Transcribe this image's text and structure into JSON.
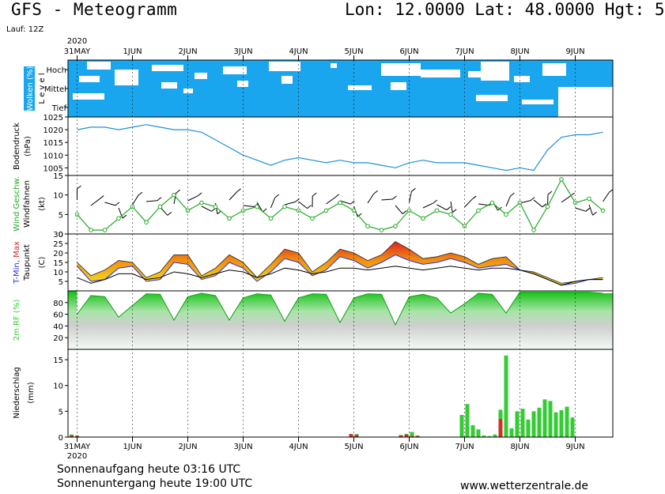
{
  "header": {
    "title": "GFS - Meteogramm",
    "coords": "Lon: 12.0000 Lat: 48.0000 Hgt: 5",
    "run": "Lauf: 12Z"
  },
  "footer": {
    "sunrise": "Sonnenaufgang heute 03:16 UTC",
    "sunset": "Sonnenuntergang heute 19:00 UTC",
    "site": "www.wetterzentrale.de"
  },
  "colors": {
    "cloud": "#1aa6ee",
    "pressure": "#1e90d6",
    "wind_speed": "#22aa22",
    "tmin": "#2233dd",
    "tmax": "#dd2222",
    "dew": "#000000",
    "rh": "#33cc33",
    "rain": "#33cc33",
    "snow": "#cc3322"
  },
  "time_axis": {
    "year": "2020",
    "day_labels": [
      "31MAY",
      "1JUN",
      "2JUN",
      "3JUN",
      "4JUN",
      "5JUN",
      "6JUN",
      "7JUN",
      "8JUN",
      "9JUN"
    ]
  },
  "chart_data": [
    {
      "type": "heatmap",
      "ylabel": "Wolken (%)",
      "level_axis": "L e v e l",
      "rows": [
        "Hoch",
        "Mittel",
        "Tief"
      ]
    },
    {
      "type": "line",
      "ylabel": "Bodendruck (hPa)",
      "ylim": [
        1002,
        1025
      ],
      "yticks": [
        1005,
        1010,
        1015,
        1020,
        1025
      ],
      "x_days": [
        0,
        0.25,
        0.5,
        0.75,
        1,
        1.25,
        1.5,
        1.75,
        2,
        2.25,
        2.5,
        2.75,
        3,
        3.25,
        3.5,
        3.75,
        4,
        4.25,
        4.5,
        4.75,
        5,
        5.25,
        5.5,
        5.75,
        6,
        6.25,
        6.5,
        6.75,
        7,
        7.25,
        7.5,
        7.75,
        8,
        8.25,
        8.5,
        8.75,
        9,
        9.25,
        9.5
      ],
      "values": [
        1020,
        1021,
        1021,
        1020,
        1021,
        1022,
        1021,
        1020,
        1020,
        1019,
        1016,
        1013,
        1010,
        1008,
        1006,
        1008,
        1009,
        1008,
        1007,
        1008,
        1007,
        1007,
        1006,
        1005,
        1007,
        1008,
        1007,
        1007,
        1007,
        1006,
        1005,
        1004,
        1005,
        1004,
        1012,
        1017,
        1018,
        1018,
        1019
      ]
    },
    {
      "type": "line",
      "ylabel": "Wind Geschw.",
      "ylabel2": "Windfahnen",
      "unit": "(kt)",
      "ylim": [
        0,
        15
      ],
      "yticks": [
        0,
        5,
        10,
        15
      ],
      "x_days": [
        0,
        0.25,
        0.5,
        0.75,
        1,
        1.25,
        1.5,
        1.75,
        2,
        2.25,
        2.5,
        2.75,
        3,
        3.25,
        3.5,
        3.75,
        4,
        4.25,
        4.5,
        4.75,
        5,
        5.25,
        5.5,
        5.75,
        6,
        6.25,
        6.5,
        6.75,
        7,
        7.25,
        7.5,
        7.75,
        8,
        8.25,
        8.5,
        8.75,
        9,
        9.25,
        9.5
      ],
      "values": [
        5,
        1,
        1,
        4,
        7,
        3,
        7,
        10,
        6,
        8,
        7,
        4,
        6,
        7,
        4,
        7,
        6,
        4,
        6,
        8,
        6,
        2,
        1,
        2,
        6,
        4,
        6,
        5,
        2,
        6,
        8,
        5,
        8,
        1,
        7,
        14,
        8,
        9,
        6
      ]
    },
    {
      "type": "area",
      "ylabel": "T-Min, Max",
      "ylabel2": "Taupunkt",
      "unit": "(C)",
      "ylim": [
        0,
        30
      ],
      "yticks": [
        5,
        10,
        15,
        20,
        25,
        30
      ],
      "x_days": [
        0,
        0.25,
        0.5,
        0.75,
        1,
        1.25,
        1.5,
        1.75,
        2,
        2.25,
        2.5,
        2.75,
        3,
        3.25,
        3.5,
        3.75,
        4,
        4.25,
        4.5,
        4.75,
        5,
        5.25,
        5.5,
        5.75,
        6,
        6.25,
        6.5,
        6.75,
        7,
        7.25,
        7.5,
        7.75,
        8,
        8.25,
        8.5,
        8.75,
        9,
        9.25,
        9.5
      ],
      "tmax": [
        15,
        8,
        11,
        16,
        15,
        7,
        10,
        19,
        19,
        8,
        12,
        19,
        15,
        7,
        14,
        22,
        20,
        10,
        15,
        22,
        20,
        16,
        19,
        26,
        22,
        17,
        18,
        20,
        18,
        14,
        17,
        18,
        11,
        10,
        7,
        4,
        5,
        6,
        7
      ],
      "tmin": [
        13,
        5,
        6,
        12,
        13,
        5,
        6,
        15,
        14,
        6,
        8,
        15,
        12,
        5,
        10,
        17,
        15,
        8,
        11,
        18,
        16,
        12,
        15,
        19,
        16,
        14,
        15,
        17,
        15,
        12,
        13,
        14,
        11,
        9,
        6,
        3,
        4,
        6,
        6
      ],
      "dew": [
        7,
        4,
        6,
        9,
        9,
        6,
        7,
        10,
        9,
        7,
        9,
        11,
        10,
        7,
        9,
        12,
        11,
        9,
        10,
        12,
        12,
        11,
        12,
        13,
        12,
        11,
        12,
        13,
        12,
        11,
        12,
        12,
        11,
        9,
        6,
        3,
        5,
        6,
        6
      ]
    },
    {
      "type": "area",
      "ylabel": "2m RF (%)",
      "ylim": [
        0,
        100
      ],
      "yticks": [
        20,
        40,
        60,
        80
      ],
      "x_days": [
        0,
        0.25,
        0.5,
        0.75,
        1,
        1.25,
        1.5,
        1.75,
        2,
        2.25,
        2.5,
        2.75,
        3,
        3.25,
        3.5,
        3.75,
        4,
        4.25,
        4.5,
        4.75,
        5,
        5.25,
        5.5,
        5.75,
        6,
        6.25,
        6.5,
        6.75,
        7,
        7.25,
        7.5,
        7.75,
        8,
        8.25,
        8.5,
        8.75,
        9,
        9.25,
        9.5
      ],
      "values": [
        60,
        92,
        90,
        55,
        75,
        95,
        94,
        50,
        90,
        96,
        92,
        50,
        88,
        95,
        93,
        48,
        88,
        95,
        94,
        46,
        88,
        95,
        94,
        42,
        90,
        94,
        88,
        62,
        78,
        96,
        94,
        62,
        98,
        98,
        98,
        98,
        98,
        98,
        96
      ]
    },
    {
      "type": "bar",
      "ylabel": "Niederschlag",
      "unit": "(mm)",
      "ylim": [
        0,
        17
      ],
      "yticks": [
        0,
        5,
        10,
        15
      ],
      "x_days": [
        -0.1,
        0.0,
        4.95,
        5.05,
        5.85,
        5.95,
        6.05,
        6.15,
        6.95,
        7.05,
        7.15,
        7.25,
        7.35,
        7.45,
        7.55,
        7.65,
        7.75,
        7.85,
        7.95,
        8.05,
        8.15,
        8.25,
        8.35,
        8.45,
        8.55,
        8.65,
        8.75,
        8.85,
        8.95,
        9.05,
        9.15,
        9.25,
        9.35,
        9.45
      ],
      "rain": [
        0.5,
        0.3,
        0.5,
        0.6,
        0.4,
        0.6,
        1.0,
        0.3,
        4.3,
        6.4,
        2.3,
        1.5,
        0.3,
        0.2,
        0.5,
        5.3,
        15.8,
        1.7,
        5.0,
        5.5,
        3.4,
        5.0,
        5.7,
        7.3,
        7.0,
        4.8,
        5.2,
        5.9,
        3.8,
        0,
        0,
        0,
        0,
        0
      ],
      "snow": [
        0.3,
        0.2,
        0.6,
        0.4,
        0.3,
        0.5,
        0.2,
        0.2,
        0,
        0,
        0,
        0,
        0,
        0,
        0,
        3.5,
        0,
        0,
        0,
        0,
        0,
        0,
        0,
        0,
        0,
        0,
        0,
        0,
        0,
        0,
        0,
        0,
        0,
        0
      ]
    }
  ]
}
